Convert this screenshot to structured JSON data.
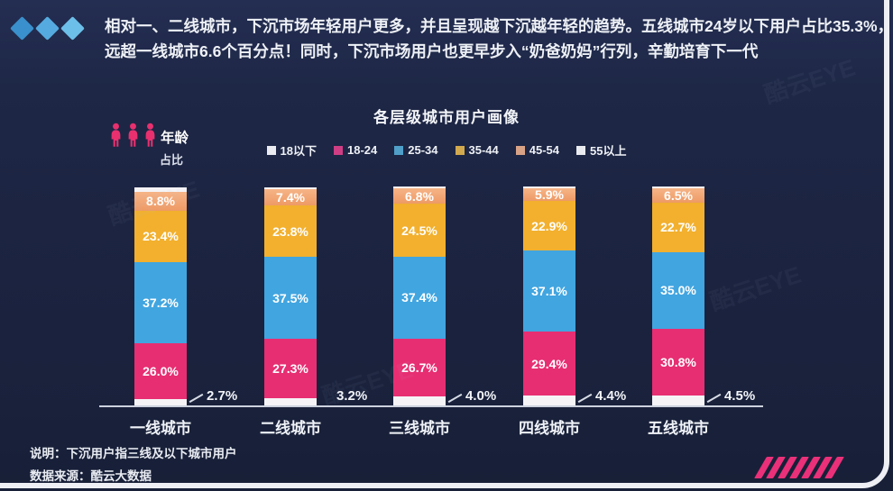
{
  "header": {
    "line1": "相对一、二线城市，下沉市场年轻用户更多，并且呈现越下沉越年轻的趋势。五线城市24岁以下用户占比35.3%，",
    "line2": "远超一线城市6.6个百分点！同时，下沉市场用户也更早步入“奶爸奶妈”行列，辛勤培育下一代"
  },
  "age_block": {
    "title": "年龄",
    "subtitle": "占比"
  },
  "notes": {
    "line1": "说明：下沉用户指三线及以下城市用户",
    "line2": "数据来源：酷云大数据"
  },
  "watermark": "酷云EYE",
  "colors": {
    "background": "#1b2340",
    "accent_pink": "#e72e72",
    "diamond_blue": "#55abdf",
    "bar_pink": "#e72e72",
    "bar_blue": "#41a5e0",
    "bar_yellow": "#f2b02e",
    "bar_salmon": "#ee9a65",
    "bar_white": "#f5f3f6",
    "frame_white": "#edeff4",
    "baseline": "#ccd2de"
  },
  "chart_data": {
    "type": "bar",
    "stacked": true,
    "title": "各层级城市用户画像",
    "unit": "%",
    "ylim": [
      0,
      100
    ],
    "grid": false,
    "legend_position": "top",
    "categories": [
      "一线城市",
      "二线城市",
      "三线城市",
      "四线城市",
      "五线城市"
    ],
    "legend": [
      "18以下",
      "18-24",
      "25-34",
      "35-44",
      "45-54",
      "55以上"
    ],
    "legend_colors": [
      "#e9ebf0",
      "#cf3e84",
      "#4f9fc9",
      "#d2a94e",
      "#d8a287",
      "#e9ebf0"
    ],
    "series": [
      {
        "name": "18以下",
        "color": "#f5f3f6",
        "labels": "callout",
        "values": [
          2.7,
          3.2,
          4.0,
          4.4,
          4.5
        ]
      },
      {
        "name": "18-24",
        "color": "#e72e72",
        "labels": "inside",
        "values": [
          26.0,
          27.3,
          26.7,
          29.4,
          30.8
        ]
      },
      {
        "name": "25-34",
        "color": "#41a5e0",
        "labels": "inside",
        "values": [
          37.2,
          37.5,
          37.4,
          37.1,
          35.0
        ]
      },
      {
        "name": "35-44",
        "color": "#f2b02e",
        "labels": "inside",
        "values": [
          23.4,
          23.8,
          24.5,
          22.9,
          22.7
        ]
      },
      {
        "name": "45-54",
        "color": "#ee9a65",
        "color_top": "#f6b487",
        "labels": "inside",
        "values": [
          8.8,
          7.4,
          6.8,
          5.9,
          6.5
        ]
      },
      {
        "name": "55以上",
        "color": "#f5f3f6",
        "labels": "none",
        "values": [
          1.9,
          0.8,
          0.6,
          0.3,
          0.5
        ],
        "note": "unlabeled top sliver, estimated as remainder to 100%"
      }
    ],
    "callout_leaders": [
      true,
      false,
      true,
      true,
      true
    ]
  }
}
